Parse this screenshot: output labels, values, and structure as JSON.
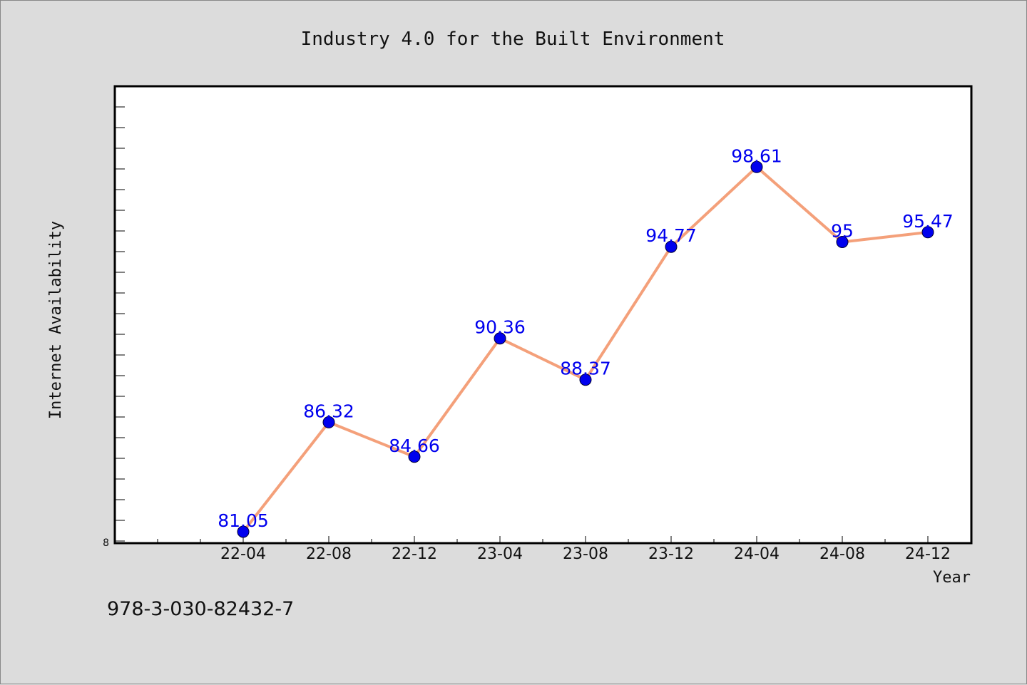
{
  "footer_code": "978-3-030-82432-7",
  "colors": {
    "background": "#dcdcdc",
    "plot_background": "#ffffff",
    "line": "#f4a07a",
    "marker": "#0000ee",
    "data_label": "#0000ee"
  },
  "chart_data": {
    "type": "line",
    "title": "Industry 4.0 for the Built Environment",
    "xlabel": "Year",
    "ylabel": "Internet Availability",
    "categories": [
      "22-04",
      "22-08",
      "22-12",
      "23-04",
      "23-08",
      "23-12",
      "24-04",
      "24-08",
      "24-12"
    ],
    "values": [
      81.05,
      86.32,
      84.66,
      90.36,
      88.37,
      94.77,
      98.61,
      95,
      95.47
    ],
    "data_labels": [
      "81.05",
      "86.32",
      "84.66",
      "90.36",
      "88.37",
      "94.77",
      "98.61",
      "95",
      "95.47"
    ],
    "y_tick_label": "8",
    "ylim": [
      80.5,
      102.5
    ],
    "grid": false,
    "legend": "none"
  }
}
